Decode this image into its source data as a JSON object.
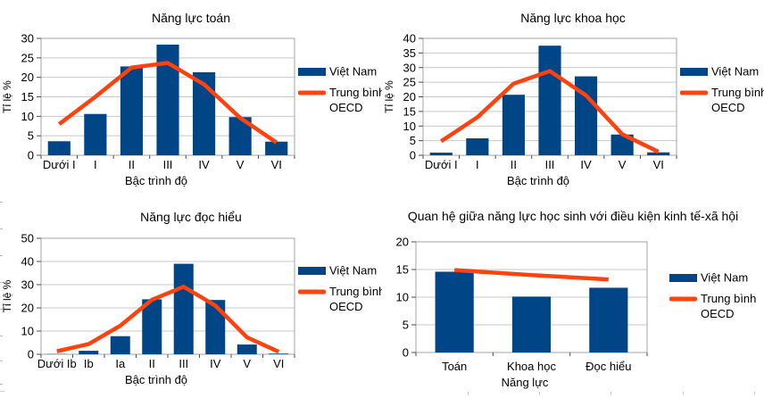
{
  "page": {
    "background": "#FFFFFF"
  },
  "palette": {
    "vietnam_bar": "#004586",
    "oecd_line": "#FF420E",
    "grid_color": "#C9C9C9",
    "axis_frame_color": "#A6A6A6",
    "tick_mark_color": "#4D4D4D",
    "text_color": "#000000"
  },
  "legend": {
    "vietnam_label": "Việt Nam",
    "oecd_label": "Trung bình OECD"
  },
  "chart_data": [
    {
      "id": "math",
      "type": "bar",
      "title": "Năng lực toán",
      "xlabel": "Bậc trình độ",
      "ylabel": "Tỉ lệ %",
      "ylim": [
        0,
        30
      ],
      "ytick_step": 5,
      "grid": true,
      "legend_position": "right",
      "categories": [
        "Dưới I",
        "I",
        "II",
        "III",
        "IV",
        "V",
        "VI"
      ],
      "series": [
        {
          "name": "Việt Nam",
          "type": "bar",
          "color": "#004586",
          "values": [
            3.6,
            10.6,
            22.8,
            28.4,
            21.3,
            9.8,
            3.5
          ]
        },
        {
          "name": "Trung bình OECD",
          "type": "line",
          "color": "#FF420E",
          "values": [
            8.0,
            15.0,
            22.5,
            23.7,
            18.2,
            9.6,
            3.3
          ]
        }
      ]
    },
    {
      "id": "science",
      "type": "bar",
      "title": "Năng lực khoa học",
      "xlabel": "Bậc trình độ",
      "ylabel": "Tỉ lệ %",
      "ylim": [
        0,
        40
      ],
      "ytick_step": 5,
      "grid": true,
      "legend_position": "right",
      "categories": [
        "Dưới I",
        "I",
        "II",
        "III",
        "IV",
        "V",
        "VI"
      ],
      "series": [
        {
          "name": "Việt Nam",
          "type": "bar",
          "color": "#004586",
          "values": [
            0.9,
            5.8,
            20.7,
            37.5,
            27.0,
            7.1,
            1.0
          ]
        },
        {
          "name": "Trung bình OECD",
          "type": "line",
          "color": "#FF420E",
          "values": [
            4.8,
            13.0,
            24.5,
            28.8,
            20.5,
            7.2,
            1.2
          ]
        }
      ]
    },
    {
      "id": "reading",
      "type": "bar",
      "title": "Năng lực đọc hiểu",
      "xlabel": "Bậc trình độ",
      "ylabel": "Tỉ lệ %",
      "ylim": [
        0,
        50
      ],
      "ytick_step": 10,
      "grid": true,
      "legend_position": "right",
      "categories": [
        "Dưới Ib",
        "Ib",
        "Ia",
        "II",
        "III",
        "IV",
        "V",
        "VI"
      ],
      "series": [
        {
          "name": "Việt Nam",
          "type": "bar",
          "color": "#004586",
          "values": [
            0.1,
            1.5,
            7.8,
            23.7,
            39.0,
            23.4,
            4.2,
            0.3
          ]
        },
        {
          "name": "Trung bình OECD",
          "type": "line",
          "color": "#FF420E",
          "values": [
            1.3,
            4.4,
            12.3,
            23.5,
            29.1,
            21.0,
            7.3,
            1.1
          ]
        }
      ]
    },
    {
      "id": "escs",
      "type": "bar",
      "title": "Quan hệ giữa năng lực học sinh với điều kiện kinh tế-xã hội",
      "xlabel": "Năng lực",
      "ylabel": "",
      "ylim": [
        0,
        20
      ],
      "ytick_step": 5,
      "grid": true,
      "legend_position": "right",
      "categories": [
        "Toán",
        "Khoa học",
        "Đọc hiểu"
      ],
      "series": [
        {
          "name": "Việt Nam",
          "type": "bar",
          "color": "#004586",
          "values": [
            14.6,
            10.1,
            11.7
          ]
        },
        {
          "name": "Trung bình OECD",
          "type": "line",
          "color": "#FF420E",
          "values": [
            14.9,
            14.0,
            13.2
          ]
        }
      ]
    }
  ]
}
